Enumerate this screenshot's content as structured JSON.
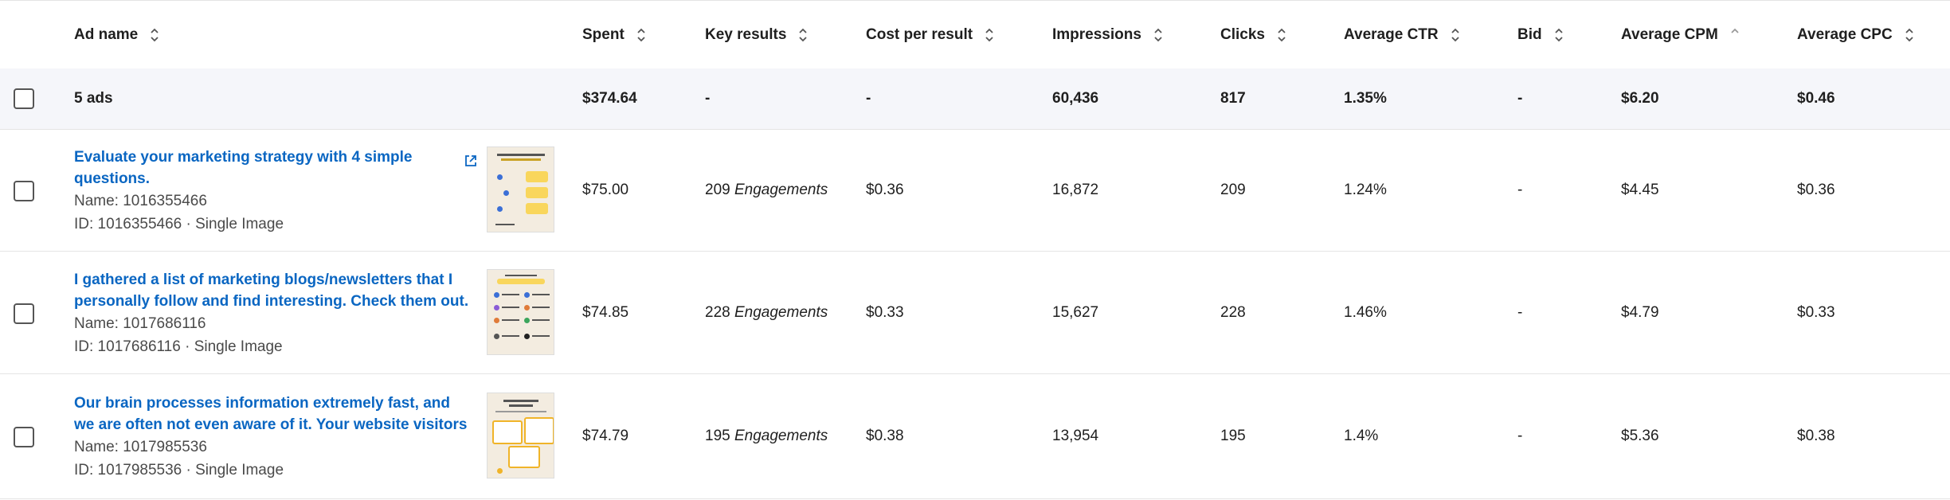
{
  "headers": {
    "ad_name": "Ad name",
    "spent": "Spent",
    "key_results": "Key results",
    "cost_per_result": "Cost per result",
    "impressions": "Impressions",
    "clicks": "Clicks",
    "average_ctr": "Average CTR",
    "bid": "Bid",
    "average_cpm": "Average CPM",
    "average_cpc": "Average CPC"
  },
  "summary": {
    "label": "5 ads",
    "spent": "$374.64",
    "key_results": "-",
    "cost_per_result": "-",
    "impressions": "60,436",
    "clicks": "817",
    "average_ctr": "1.35%",
    "bid": "-",
    "average_cpm": "$6.20",
    "average_cpc": "$0.46"
  },
  "ads": [
    {
      "title": "Evaluate your marketing strategy with 4 simple questions.",
      "name": "Name: 1016355466",
      "id_line": "ID: 1016355466 · Single Image",
      "spent": "$75.00",
      "results_count": "209",
      "results_unit": "Engagements",
      "cost_per_result": "$0.36",
      "impressions": "16,872",
      "clicks": "209",
      "average_ctr": "1.24%",
      "bid": "-",
      "average_cpm": "$4.45",
      "average_cpc": "$0.36",
      "has_external_link": true
    },
    {
      "title": "I gathered a list of marketing blogs/newsletters that I personally follow and find interesting. Check them out.",
      "name": "Name: 1017686116",
      "id_line": "ID: 1017686116 · Single Image",
      "spent": "$74.85",
      "results_count": "228",
      "results_unit": "Engagements",
      "cost_per_result": "$0.33",
      "impressions": "15,627",
      "clicks": "228",
      "average_ctr": "1.46%",
      "bid": "-",
      "average_cpm": "$4.79",
      "average_cpc": "$0.33",
      "has_external_link": false
    },
    {
      "title": "Our brain processes information extremely fast, and we are often not even aware of it. Your website visitors will",
      "name": "Name: 1017985536",
      "id_line": "ID: 1017985536 · Single Image",
      "spent": "$74.79",
      "results_count": "195",
      "results_unit": "Engagements",
      "cost_per_result": "$0.38",
      "impressions": "13,954",
      "clicks": "195",
      "average_ctr": "1.4%",
      "bid": "-",
      "average_cpm": "$5.36",
      "average_cpc": "$0.38",
      "has_external_link": false
    }
  ],
  "colors": {
    "link": "#0a66c2",
    "summary_bg": "#f5f6fa",
    "border": "#e4e4e4"
  },
  "icons": {
    "sort": "sort-icon",
    "external_link": "external-link-icon"
  }
}
